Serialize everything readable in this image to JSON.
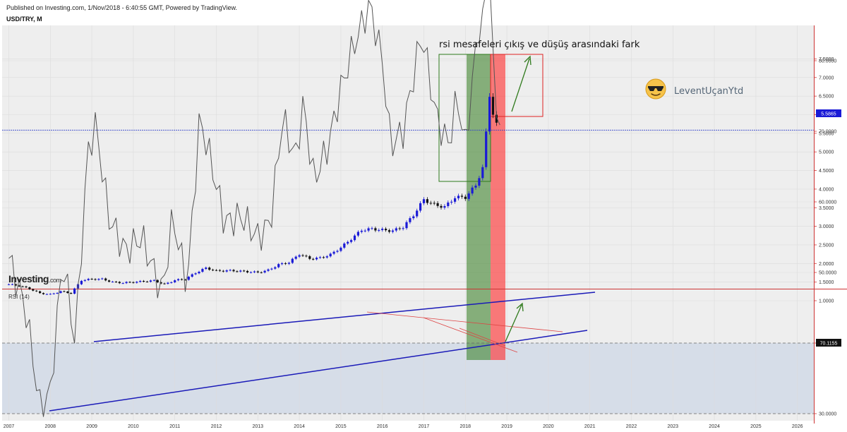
{
  "header": {
    "published": "Published on Investing.com, 1/Nov/2018 - 6:40:55 GMT, Powered by TradingView.",
    "symbol": "USD/TRY, M"
  },
  "logo": {
    "brand": "Investing",
    "suffix": ".com"
  },
  "annotations": {
    "headline": "rsi mesafeleri çıkış ve düşüş arasındaki fark",
    "author": "LeventUçanYtd",
    "author_icon": "sunglasses-smiley-icon"
  },
  "colors": {
    "candle_up": "#1a1ad6",
    "candle_down": "#111111",
    "rsi_line": "#555555",
    "trend_line": "#1a1ab8",
    "green_zone": "#2f7a1c",
    "red_zone": "#ff2a2a",
    "arrow": "#2f7a1c",
    "price_line": "#3344cc",
    "axis_red": "#cc3333"
  },
  "chart_data": [
    {
      "type": "candlestick",
      "title": "USD/TRY, M",
      "x": [
        "2007",
        "2008",
        "2009",
        "2010",
        "2011",
        "2012",
        "2013",
        "2014",
        "2015",
        "2016",
        "2017",
        "2018",
        "2019",
        "2020",
        "2021",
        "2022",
        "2023",
        "2024",
        "2025",
        "2026"
      ],
      "ylim": [
        0.85,
        7.85
      ],
      "yticks": [
        "1.0000",
        "1.5000",
        "2.0000",
        "2.5000",
        "3.0000",
        "3.5000",
        "4.0000",
        "4.5000",
        "5.0000",
        "5.5000",
        "6.0000",
        "6.5000",
        "7.0000",
        "7.5000"
      ],
      "current_price": 5.5865,
      "current_price_label": "5.5865",
      "series": [
        {
          "x": 2007.0,
          "y": 1.44
        },
        {
          "x": 2007.25,
          "y": 1.4
        },
        {
          "x": 2007.5,
          "y": 1.32
        },
        {
          "x": 2007.75,
          "y": 1.2
        },
        {
          "x": 2008.0,
          "y": 1.17
        },
        {
          "x": 2008.25,
          "y": 1.25
        },
        {
          "x": 2008.5,
          "y": 1.2
        },
        {
          "x": 2008.75,
          "y": 1.55
        },
        {
          "x": 2009.0,
          "y": 1.58
        },
        {
          "x": 2009.25,
          "y": 1.58
        },
        {
          "x": 2009.5,
          "y": 1.5
        },
        {
          "x": 2009.75,
          "y": 1.48
        },
        {
          "x": 2010.0,
          "y": 1.5
        },
        {
          "x": 2010.25,
          "y": 1.52
        },
        {
          "x": 2010.5,
          "y": 1.54
        },
        {
          "x": 2010.75,
          "y": 1.44
        },
        {
          "x": 2011.0,
          "y": 1.55
        },
        {
          "x": 2011.25,
          "y": 1.58
        },
        {
          "x": 2011.5,
          "y": 1.75
        },
        {
          "x": 2011.75,
          "y": 1.88
        },
        {
          "x": 2012.0,
          "y": 1.8
        },
        {
          "x": 2012.25,
          "y": 1.81
        },
        {
          "x": 2012.5,
          "y": 1.8
        },
        {
          "x": 2012.75,
          "y": 1.78
        },
        {
          "x": 2013.0,
          "y": 1.76
        },
        {
          "x": 2013.25,
          "y": 1.82
        },
        {
          "x": 2013.5,
          "y": 1.97
        },
        {
          "x": 2013.75,
          "y": 2.03
        },
        {
          "x": 2014.0,
          "y": 2.25
        },
        {
          "x": 2014.25,
          "y": 2.13
        },
        {
          "x": 2014.5,
          "y": 2.15
        },
        {
          "x": 2014.75,
          "y": 2.24
        },
        {
          "x": 2015.0,
          "y": 2.43
        },
        {
          "x": 2015.25,
          "y": 2.66
        },
        {
          "x": 2015.5,
          "y": 2.9
        },
        {
          "x": 2015.75,
          "y": 2.93
        },
        {
          "x": 2016.0,
          "y": 2.9
        },
        {
          "x": 2016.25,
          "y": 2.88
        },
        {
          "x": 2016.5,
          "y": 2.98
        },
        {
          "x": 2016.75,
          "y": 3.3
        },
        {
          "x": 2017.0,
          "y": 3.72
        },
        {
          "x": 2017.25,
          "y": 3.58
        },
        {
          "x": 2017.5,
          "y": 3.52
        },
        {
          "x": 2017.75,
          "y": 3.78
        },
        {
          "x": 2018.0,
          "y": 3.78
        },
        {
          "x": 2018.25,
          "y": 4.1
        },
        {
          "x": 2018.42,
          "y": 4.6
        },
        {
          "x": 2018.58,
          "y": 6.5
        },
        {
          "x": 2018.67,
          "y": 5.98
        },
        {
          "x": 2018.83,
          "y": 5.59
        }
      ]
    },
    {
      "type": "line",
      "title": "RSI (14)",
      "ylim": [
        27,
        102
      ],
      "yticks": [
        "30.0000",
        "40.0000",
        "50.0000",
        "60.0000",
        "70.0000",
        "80.0000",
        "90.0000",
        "100.0000"
      ],
      "current_value": 70.1155,
      "current_value_label": "70.1155",
      "series": [
        {
          "name": "RSI (14)",
          "points": [
            {
              "x": 2007.0,
              "y": 52
            },
            {
              "x": 2007.4,
              "y": 45
            },
            {
              "x": 2007.75,
              "y": 31
            },
            {
              "x": 2008.0,
              "y": 33
            },
            {
              "x": 2008.3,
              "y": 52
            },
            {
              "x": 2008.6,
              "y": 40
            },
            {
              "x": 2008.9,
              "y": 67
            },
            {
              "x": 2009.1,
              "y": 71
            },
            {
              "x": 2009.4,
              "y": 58
            },
            {
              "x": 2009.8,
              "y": 53
            },
            {
              "x": 2010.2,
              "y": 55
            },
            {
              "x": 2010.7,
              "y": 47
            },
            {
              "x": 2010.95,
              "y": 58
            },
            {
              "x": 2011.3,
              "y": 48
            },
            {
              "x": 2011.6,
              "y": 72
            },
            {
              "x": 2011.9,
              "y": 65
            },
            {
              "x": 2012.2,
              "y": 57
            },
            {
              "x": 2012.6,
              "y": 58
            },
            {
              "x": 2013.0,
              "y": 55
            },
            {
              "x": 2013.3,
              "y": 57
            },
            {
              "x": 2013.6,
              "y": 72
            },
            {
              "x": 2013.9,
              "y": 66
            },
            {
              "x": 2014.1,
              "y": 74
            },
            {
              "x": 2014.35,
              "y": 63
            },
            {
              "x": 2014.7,
              "y": 68
            },
            {
              "x": 2015.0,
              "y": 76
            },
            {
              "x": 2015.3,
              "y": 82
            },
            {
              "x": 2015.7,
              "y": 88
            },
            {
              "x": 2016.0,
              "y": 80
            },
            {
              "x": 2016.2,
              "y": 68
            },
            {
              "x": 2016.5,
              "y": 70
            },
            {
              "x": 2016.95,
              "y": 84
            },
            {
              "x": 2017.3,
              "y": 72
            },
            {
              "x": 2017.6,
              "y": 68
            },
            {
              "x": 2017.8,
              "y": 75
            },
            {
              "x": 2018.0,
              "y": 68
            },
            {
              "x": 2018.3,
              "y": 84
            },
            {
              "x": 2018.58,
              "y": 92
            },
            {
              "x": 2018.75,
              "y": 72
            },
            {
              "x": 2018.9,
              "y": 70
            }
          ]
        }
      ]
    }
  ]
}
